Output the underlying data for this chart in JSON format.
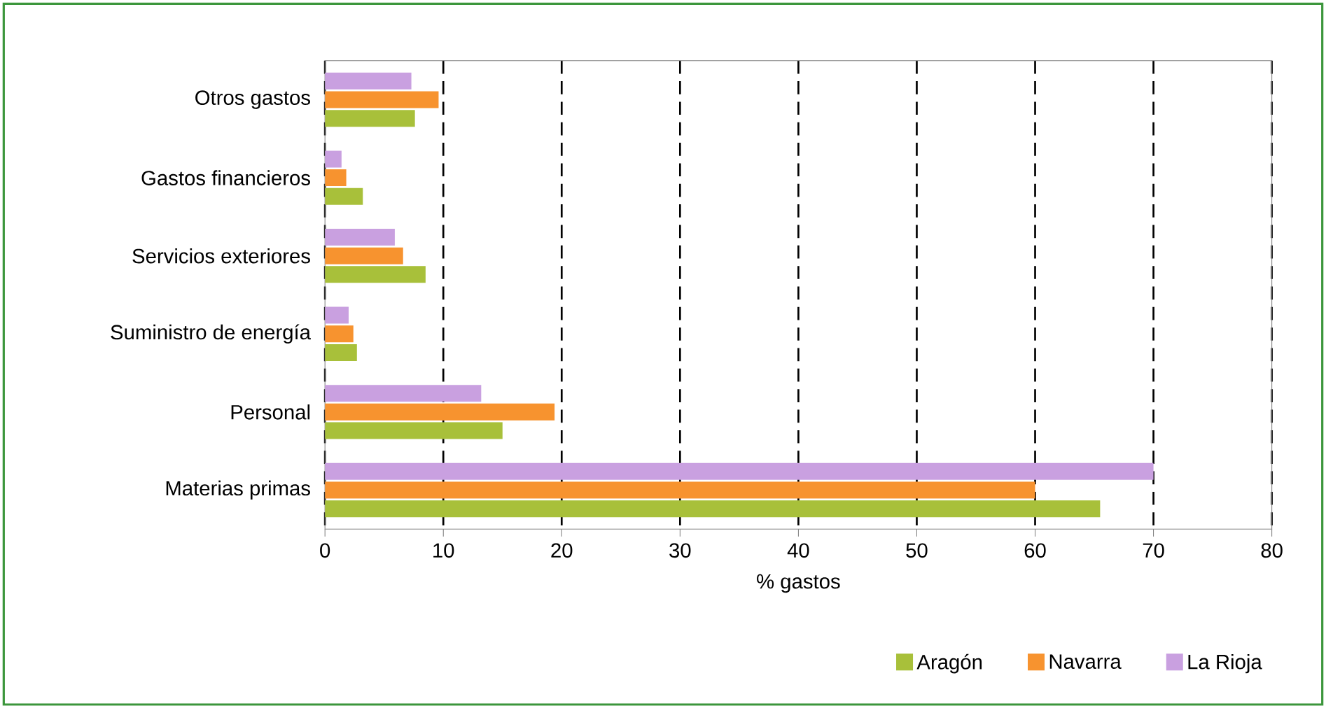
{
  "chart_data": {
    "type": "bar",
    "orientation": "horizontal",
    "xlabel": "% gastos",
    "categories": [
      "Otros gastos",
      "Gastos financieros",
      "Servicios exteriores",
      "Suministro de energía",
      "Personal",
      "Materias primas"
    ],
    "series": [
      {
        "name": "Aragón",
        "color": "#a8c03a",
        "values": [
          7.6,
          3.2,
          8.5,
          2.7,
          15.0,
          65.5
        ]
      },
      {
        "name": "Navarra",
        "color": "#f7932f",
        "values": [
          9.6,
          1.8,
          6.6,
          2.4,
          19.4,
          60
        ]
      },
      {
        "name": "La Rioja",
        "color": "#c9a0e0",
        "values": [
          7.3,
          1.4,
          5.9,
          2.0,
          13.2,
          70
        ]
      }
    ],
    "xlim": [
      0,
      80
    ],
    "xticks": [
      0,
      10,
      20,
      30,
      40,
      50,
      60,
      70,
      80
    ],
    "grid": "x",
    "legend": "bottom right"
  }
}
